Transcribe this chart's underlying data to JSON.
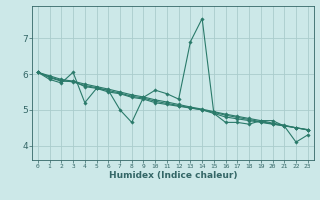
{
  "xlabel": "Humidex (Indice chaleur)",
  "bg_color": "#cce8e8",
  "grid_color": "#aacccc",
  "line_color": "#2a7a6a",
  "tick_color": "#336666",
  "xlim": [
    -0.5,
    23.5
  ],
  "ylim": [
    3.6,
    7.9
  ],
  "yticks": [
    4,
    5,
    6,
    7
  ],
  "xticks": [
    0,
    1,
    2,
    3,
    4,
    5,
    6,
    7,
    8,
    9,
    10,
    11,
    12,
    13,
    14,
    15,
    16,
    17,
    18,
    19,
    20,
    21,
    22,
    23
  ],
  "lines": [
    {
      "x": [
        0,
        1,
        2,
        3,
        4,
        5,
        6,
        7,
        8,
        9,
        10,
        11,
        12,
        13,
        14,
        15,
        16,
        17,
        18,
        19,
        20,
        21,
        22,
        23
      ],
      "y": [
        6.05,
        5.85,
        5.75,
        6.05,
        5.2,
        5.6,
        5.55,
        5.0,
        4.65,
        5.35,
        5.55,
        5.45,
        5.3,
        6.9,
        7.55,
        4.9,
        4.65,
        4.65,
        4.6,
        4.7,
        4.7,
        4.55,
        4.1,
        4.3
      ]
    },
    {
      "x": [
        0,
        1,
        2,
        3,
        4,
        5,
        6,
        7,
        8,
        9,
        10,
        11,
        12,
        13,
        14,
        15,
        16,
        17,
        18,
        19,
        20,
        21,
        22,
        23
      ],
      "y": [
        6.05,
        5.9,
        5.8,
        5.8,
        5.65,
        5.6,
        5.5,
        5.45,
        5.35,
        5.3,
        5.2,
        5.15,
        5.1,
        5.05,
        5.0,
        4.9,
        4.8,
        4.75,
        4.7,
        4.65,
        4.6,
        4.55,
        4.5,
        4.45
      ]
    },
    {
      "x": [
        0,
        1,
        2,
        3,
        4,
        5,
        6,
        7,
        8,
        9,
        10,
        11,
        12,
        13,
        14,
        15,
        16,
        17,
        18,
        19,
        20,
        21,
        22,
        23
      ],
      "y": [
        6.05,
        5.95,
        5.85,
        5.8,
        5.72,
        5.65,
        5.58,
        5.5,
        5.42,
        5.36,
        5.28,
        5.22,
        5.15,
        5.08,
        5.02,
        4.95,
        4.88,
        4.82,
        4.76,
        4.7,
        4.63,
        4.57,
        4.5,
        4.44
      ]
    },
    {
      "x": [
        0,
        1,
        2,
        3,
        4,
        5,
        6,
        7,
        8,
        9,
        10,
        11,
        12,
        13,
        14,
        15,
        16,
        17,
        18,
        19,
        20,
        21,
        22,
        23
      ],
      "y": [
        6.05,
        5.92,
        5.82,
        5.78,
        5.68,
        5.62,
        5.54,
        5.47,
        5.38,
        5.33,
        5.24,
        5.18,
        5.12,
        5.06,
        5.0,
        4.93,
        4.85,
        4.79,
        4.73,
        4.67,
        4.61,
        4.56,
        4.5,
        4.44
      ]
    }
  ]
}
